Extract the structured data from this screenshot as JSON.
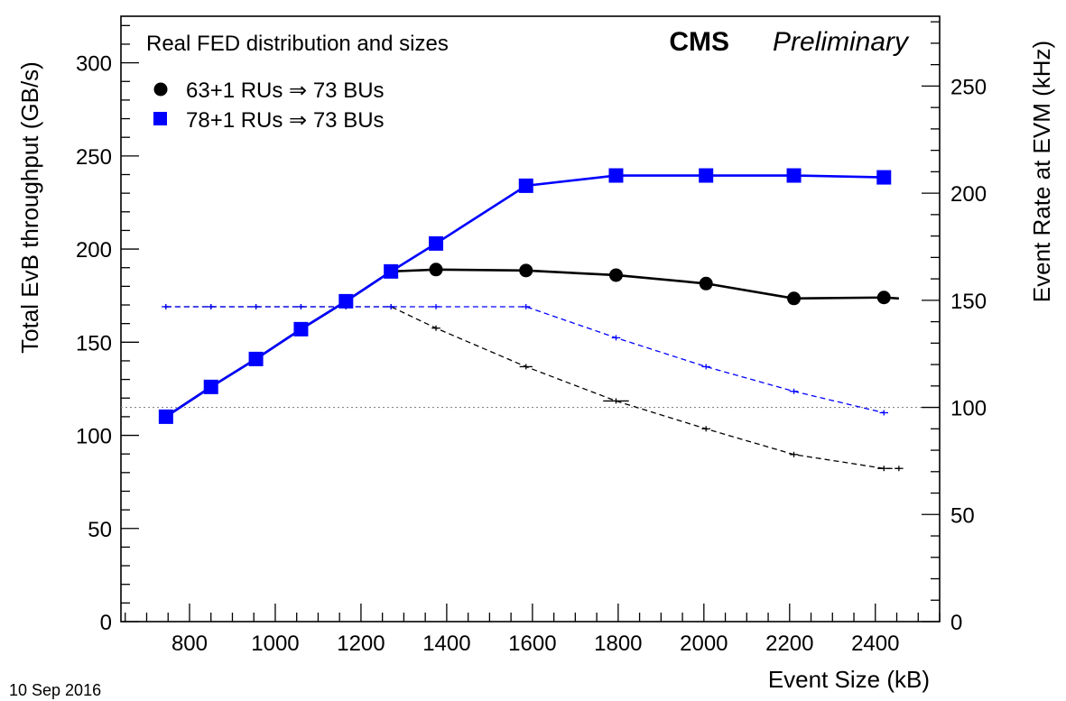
{
  "chart_data": {
    "type": "line",
    "xlabel": "Event Size (kB)",
    "ylabel": "Total EvB throughput (GB/s)",
    "y2label": "Event Rate at EVM (kHz)",
    "xlim": [
      640,
      2550
    ],
    "ylim": [
      0,
      325
    ],
    "y2lim": [
      0,
      282.6
    ],
    "x_ticks": [
      800,
      1000,
      1200,
      1400,
      1600,
      1800,
      2000,
      2200,
      2400
    ],
    "y_ticks": [
      0,
      50,
      100,
      150,
      200,
      250,
      300
    ],
    "y2_ticks": [
      0,
      50,
      100,
      150,
      200,
      250
    ],
    "x_minor_step": 50,
    "y_minor_step": 10,
    "y2_minor_step": 10,
    "reference_line": {
      "axis": "y2",
      "value": 100,
      "style": "dotted",
      "color": "#888888"
    },
    "legend_title": "Real FED distribution and sizes",
    "experiment_label": "CMS",
    "status_label": "Preliminary",
    "date_label": "10 Sep 2016",
    "series": [
      {
        "name": "63+1 RUs ⇒ 73 BUs",
        "color": "#000000",
        "marker": "circle",
        "throughput_x": [
          745,
          850,
          955,
          1060,
          1165,
          1270,
          1375,
          1585,
          1795,
          2005,
          2210,
          2420,
          2455
        ],
        "throughput_y": [
          110,
          126,
          141,
          157,
          172,
          188,
          189,
          188.5,
          186,
          181.5,
          173.5,
          174,
          173.5
        ],
        "throughput_markers": [
          false,
          false,
          false,
          false,
          false,
          false,
          true,
          true,
          true,
          true,
          true,
          true,
          false
        ],
        "rate_x": [
          745,
          850,
          955,
          1060,
          1165,
          1270,
          1375,
          1585,
          1795,
          2005,
          2210,
          2420,
          2455
        ],
        "rate_y": [
          147,
          147,
          147,
          147,
          147,
          147,
          137,
          119,
          103,
          90,
          78,
          71.5,
          71.5
        ],
        "rate_xerr": [
          5,
          5,
          5,
          5,
          5,
          5,
          10,
          15,
          30,
          10,
          10,
          15,
          10
        ]
      },
      {
        "name": "78+1 RUs ⇒ 73 BUs",
        "color": "#0000ff",
        "marker": "square",
        "throughput_x": [
          745,
          850,
          955,
          1060,
          1165,
          1270,
          1375,
          1585,
          1795,
          2005,
          2210,
          2420
        ],
        "throughput_y": [
          110,
          126,
          141,
          157,
          172,
          188,
          203,
          234,
          239.5,
          239.5,
          239.5,
          238.5
        ],
        "throughput_markers": [
          true,
          true,
          true,
          true,
          true,
          true,
          true,
          true,
          true,
          true,
          true,
          true
        ],
        "rate_x": [
          745,
          850,
          955,
          1060,
          1165,
          1270,
          1375,
          1585,
          1795,
          2005,
          2210,
          2420
        ],
        "rate_y": [
          147,
          147,
          147,
          147,
          147,
          147,
          147,
          147,
          132.5,
          119,
          107.5,
          97.5
        ],
        "rate_xerr": [
          10,
          10,
          10,
          10,
          10,
          10,
          10,
          10,
          10,
          10,
          10,
          10
        ]
      }
    ]
  }
}
